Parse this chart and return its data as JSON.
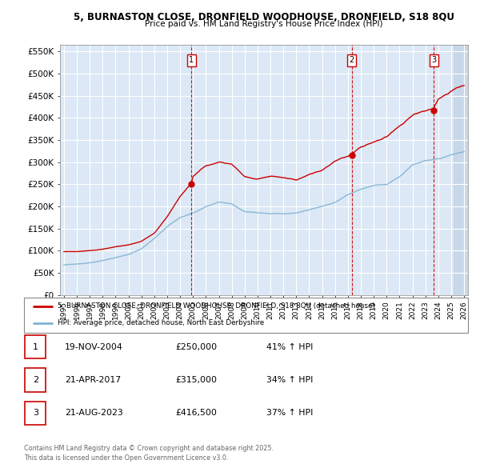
{
  "title_line1": "5, BURNASTON CLOSE, DRONFIELD WOODHOUSE, DRONFIELD, S18 8QU",
  "title_line2": "Price paid vs. HM Land Registry's House Price Index (HPI)",
  "ylim": [
    0,
    575000
  ],
  "xlim_start": 1994.7,
  "xlim_end": 2026.3,
  "sale_dates_num": [
    2004.89,
    2017.3,
    2023.64
  ],
  "sale_prices": [
    250000,
    315000,
    416500
  ],
  "sale_labels": [
    "1",
    "2",
    "3"
  ],
  "legend_red": "5, BURNASTON CLOSE, DRONFIELD WOODHOUSE, DRONFIELD, S18 8QU (detached house)",
  "legend_blue": "HPI: Average price, detached house, North East Derbyshire",
  "table_rows": [
    {
      "num": "1",
      "date": "19-NOV-2004",
      "price": "£250,000",
      "hpi": "41% ↑ HPI"
    },
    {
      "num": "2",
      "date": "21-APR-2017",
      "price": "£315,000",
      "hpi": "34% ↑ HPI"
    },
    {
      "num": "3",
      "date": "21-AUG-2023",
      "price": "£416,500",
      "hpi": "37% ↑ HPI"
    }
  ],
  "footnote1": "Contains HM Land Registry data © Crown copyright and database right 2025.",
  "footnote2": "This data is licensed under the Open Government Licence v3.0.",
  "red_color": "#cc0000",
  "blue_color": "#7fb3d3",
  "bg_chart": "#dce8f5",
  "grid_color": "#ffffff",
  "dashed_line_color": "#cc0000",
  "key_x_blue": [
    1995,
    1996,
    1997,
    1998,
    1999,
    2000,
    2001,
    2002,
    2003,
    2004,
    2005,
    2006,
    2007,
    2008,
    2009,
    2010,
    2011,
    2012,
    2013,
    2014,
    2015,
    2016,
    2017,
    2018,
    2019,
    2020,
    2021,
    2022,
    2023,
    2024,
    2025,
    2026
  ],
  "key_y_blue": [
    68000,
    70000,
    73000,
    78000,
    85000,
    92000,
    105000,
    128000,
    155000,
    175000,
    185000,
    200000,
    210000,
    205000,
    188000,
    185000,
    183000,
    182000,
    185000,
    192000,
    200000,
    210000,
    228000,
    240000,
    248000,
    250000,
    268000,
    295000,
    305000,
    310000,
    318000,
    325000
  ],
  "key_x_red": [
    1995,
    1996,
    1997,
    1998,
    1999,
    2000,
    2001,
    2002,
    2003,
    2004,
    2004.89,
    2005,
    2006,
    2007,
    2008,
    2009,
    2010,
    2011,
    2012,
    2013,
    2014,
    2015,
    2016,
    2017,
    2017.3,
    2018,
    2019,
    2020,
    2021,
    2022,
    2023,
    2023.64,
    2024,
    2025,
    2026
  ],
  "key_y_red": [
    98000,
    98000,
    100000,
    103000,
    108000,
    112000,
    120000,
    138000,
    175000,
    220000,
    250000,
    265000,
    290000,
    300000,
    295000,
    268000,
    262000,
    268000,
    265000,
    258000,
    270000,
    280000,
    300000,
    310000,
    315000,
    330000,
    340000,
    350000,
    375000,
    398000,
    408000,
    416500,
    435000,
    455000,
    468000
  ]
}
